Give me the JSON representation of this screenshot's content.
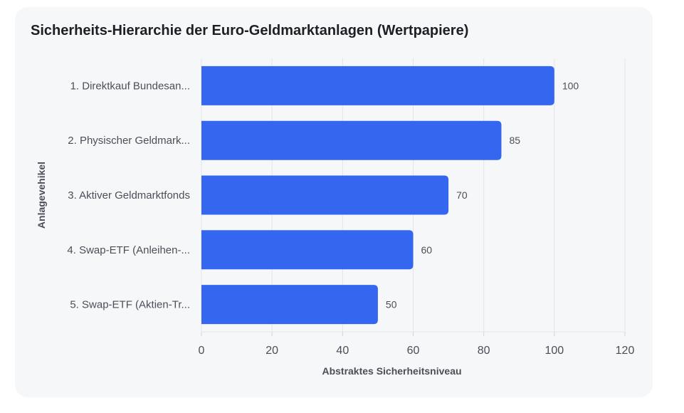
{
  "chart_data": {
    "type": "bar",
    "orientation": "horizontal",
    "title": "Sicherheits-Hierarchie der Euro-Geldmarktanlagen (Wertpapiere)",
    "xlabel": "Abstraktes Sicherheitsniveau",
    "ylabel": "Anlagevehikel",
    "categories": [
      "1. Direktkauf Bundesan...",
      "2. Physischer Geldmark...",
      "3. Aktiver Geldmarktfonds",
      "4. Swap-ETF (Anleihen-...",
      "5. Swap-ETF (Aktien-Tr..."
    ],
    "values": [
      100,
      85,
      70,
      60,
      50
    ],
    "xlim": [
      0,
      120
    ],
    "xticks": [
      0,
      20,
      40,
      60,
      80,
      100,
      120
    ],
    "grid": true,
    "bar_color": "#3566f0",
    "grid_color": "#e3e5ea",
    "data_labels": true
  }
}
